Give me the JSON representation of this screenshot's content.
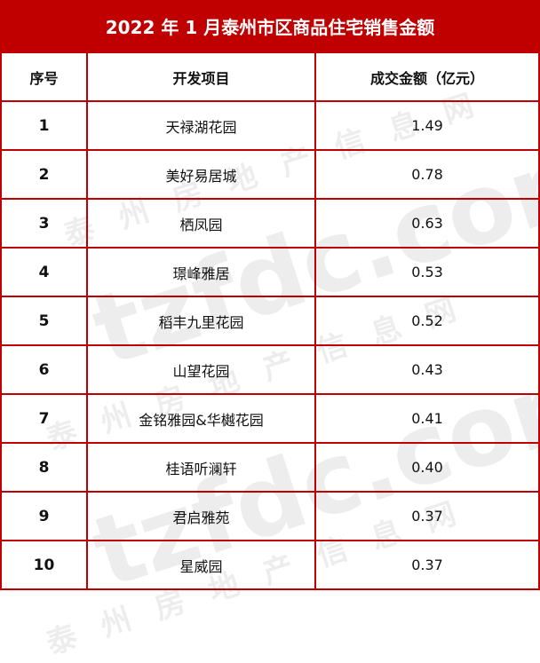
{
  "title": "2022 年 1 月泰州市区商品住宅销售金额",
  "watermark": {
    "logo": "tzfdc.com.cn",
    "text": "泰州房地产信息网"
  },
  "table": {
    "headers": [
      "序号",
      "开发项目",
      "成交金额（亿元）"
    ],
    "rows": [
      {
        "no": "1",
        "project": "天禄湖花园",
        "amount": "1.49"
      },
      {
        "no": "2",
        "project": "美好易居城",
        "amount": "0.78"
      },
      {
        "no": "3",
        "project": "栖凤园",
        "amount": "0.63"
      },
      {
        "no": "4",
        "project": "璟峰雅居",
        "amount": "0.53"
      },
      {
        "no": "5",
        "project": "稻丰九里花园",
        "amount": "0.52"
      },
      {
        "no": "6",
        "project": "山望花园",
        "amount": "0.43"
      },
      {
        "no": "7",
        "project": "金铭雅园&华樾花园",
        "amount": "0.41"
      },
      {
        "no": "8",
        "project": "桂语听澜轩",
        "amount": "0.40"
      },
      {
        "no": "9",
        "project": "君启雅苑",
        "amount": "0.37"
      },
      {
        "no": "10",
        "project": "星威园",
        "amount": "0.37"
      }
    ]
  }
}
